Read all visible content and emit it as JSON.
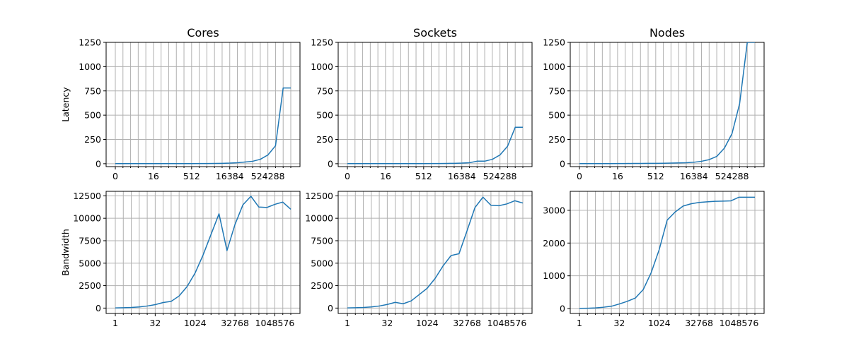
{
  "colors": {
    "line": "#1f77b4",
    "grid": "#b0b0b0",
    "axes": "#000000",
    "background": "#ffffff"
  },
  "chart_data": [
    {
      "type": "line",
      "title": "Cores",
      "xlabel": "",
      "ylabel": "Latency",
      "grid": true,
      "x": [
        0,
        1,
        2,
        4,
        8,
        16,
        32,
        64,
        128,
        256,
        512,
        1024,
        2048,
        4096,
        8192,
        16384,
        32768,
        65536,
        131072,
        262144,
        524288,
        1048576,
        2097152,
        4194304
      ],
      "x_tick_labels": [
        "0",
        "16",
        "512",
        "16384",
        "524288"
      ],
      "x_tick_values": [
        0,
        16,
        512,
        16384,
        524288
      ],
      "yticks": [
        0,
        250,
        500,
        750,
        1000,
        1250
      ],
      "ylim": [
        -30,
        1250
      ],
      "values": [
        0.5,
        0.5,
        0.5,
        0.5,
        0.5,
        0.6,
        0.6,
        0.7,
        0.8,
        1,
        1.2,
        1.5,
        2,
        3,
        4,
        6,
        10,
        17,
        25,
        45,
        90,
        185,
        780,
        780
      ]
    },
    {
      "type": "line",
      "title": "Sockets",
      "xlabel": "",
      "ylabel": "",
      "grid": true,
      "x": [
        0,
        1,
        2,
        4,
        8,
        16,
        32,
        64,
        128,
        256,
        512,
        1024,
        2048,
        4096,
        8192,
        16384,
        32768,
        65536,
        131072,
        262144,
        524288,
        1048576,
        2097152,
        4194304
      ],
      "x_tick_labels": [
        "0",
        "16",
        "512",
        "16384",
        "524288"
      ],
      "x_tick_values": [
        0,
        16,
        512,
        16384,
        524288
      ],
      "yticks": [
        0,
        250,
        500,
        750,
        1000,
        1250
      ],
      "ylim": [
        -30,
        1250
      ],
      "values": [
        0.5,
        0.5,
        0.5,
        0.5,
        0.5,
        0.6,
        0.6,
        0.7,
        0.8,
        1,
        1.2,
        1.5,
        2,
        3,
        4,
        6,
        10,
        26,
        26,
        45,
        90,
        180,
        375,
        375
      ]
    },
    {
      "type": "line",
      "title": "Nodes",
      "xlabel": "",
      "ylabel": "",
      "grid": true,
      "x": [
        0,
        1,
        2,
        4,
        8,
        16,
        32,
        64,
        128,
        256,
        512,
        1024,
        2048,
        4096,
        8192,
        16384,
        32768,
        65536,
        131072,
        262144,
        524288,
        1048576,
        2097152,
        4194304
      ],
      "x_tick_labels": [
        "0",
        "16",
        "512",
        "16384",
        "524288"
      ],
      "x_tick_values": [
        0,
        16,
        512,
        16384,
        524288
      ],
      "yticks": [
        0,
        250,
        500,
        750,
        1000,
        1250
      ],
      "ylim": [
        -30,
        1250
      ],
      "values": [
        1,
        1,
        1,
        1,
        1.2,
        1.5,
        2,
        2.5,
        3,
        3.5,
        4,
        5,
        6,
        8,
        10,
        15,
        25,
        42,
        75,
        160,
        310,
        620,
        1250,
        1250
      ]
    },
    {
      "type": "line",
      "title": "",
      "xlabel": "",
      "ylabel": "Bandwidth",
      "grid": true,
      "x": [
        1,
        2,
        4,
        8,
        16,
        32,
        64,
        128,
        256,
        512,
        1024,
        2048,
        4096,
        8192,
        16384,
        32768,
        65536,
        131072,
        262144,
        524288,
        1048576,
        2097152,
        4194304
      ],
      "x_tick_labels": [
        "1",
        "32",
        "1024",
        "32768",
        "1048576"
      ],
      "x_tick_values": [
        1,
        32,
        1024,
        32768,
        1048576
      ],
      "yticks": [
        0,
        2500,
        5000,
        7500,
        10000,
        12500
      ],
      "ylim": [
        -600,
        13000
      ],
      "values": [
        20,
        40,
        70,
        130,
        230,
        380,
        620,
        750,
        1350,
        2400,
        3900,
        5900,
        8200,
        10500,
        6400,
        9300,
        11500,
        12450,
        11250,
        11200,
        11550,
        11800,
        11000
      ]
    },
    {
      "type": "line",
      "title": "",
      "xlabel": "",
      "ylabel": "",
      "grid": true,
      "x": [
        1,
        2,
        4,
        8,
        16,
        32,
        64,
        128,
        256,
        512,
        1024,
        2048,
        4096,
        8192,
        16384,
        32768,
        65536,
        131072,
        262144,
        524288,
        1048576,
        2097152,
        4194304
      ],
      "x_tick_labels": [
        "1",
        "32",
        "1024",
        "32768",
        "1048576"
      ],
      "x_tick_values": [
        1,
        32,
        1024,
        32768,
        1048576
      ],
      "yticks": [
        0,
        2500,
        5000,
        7500,
        10000,
        12500
      ],
      "ylim": [
        -600,
        13000
      ],
      "values": [
        20,
        40,
        70,
        130,
        230,
        400,
        640,
        480,
        800,
        1500,
        2200,
        3300,
        4700,
        5850,
        6050,
        8600,
        11200,
        12350,
        11450,
        11400,
        11600,
        11950,
        11700
      ]
    },
    {
      "type": "line",
      "title": "",
      "xlabel": "",
      "ylabel": "",
      "grid": true,
      "x": [
        1,
        2,
        4,
        8,
        16,
        32,
        64,
        128,
        256,
        512,
        1024,
        2048,
        4096,
        8192,
        16384,
        32768,
        65536,
        131072,
        262144,
        524288,
        1048576,
        2097152,
        4194304
      ],
      "x_tick_labels": [
        "1",
        "32",
        "1024",
        "32768",
        "1048576"
      ],
      "x_tick_values": [
        1,
        32,
        1024,
        32768,
        1048576
      ],
      "yticks": [
        0,
        1000,
        2000,
        3000
      ],
      "ylim": [
        -150,
        3580
      ],
      "values": [
        5,
        10,
        20,
        40,
        70,
        140,
        220,
        320,
        580,
        1100,
        1800,
        2700,
        2950,
        3130,
        3200,
        3240,
        3260,
        3275,
        3280,
        3290,
        3400,
        3400,
        3400
      ]
    }
  ]
}
